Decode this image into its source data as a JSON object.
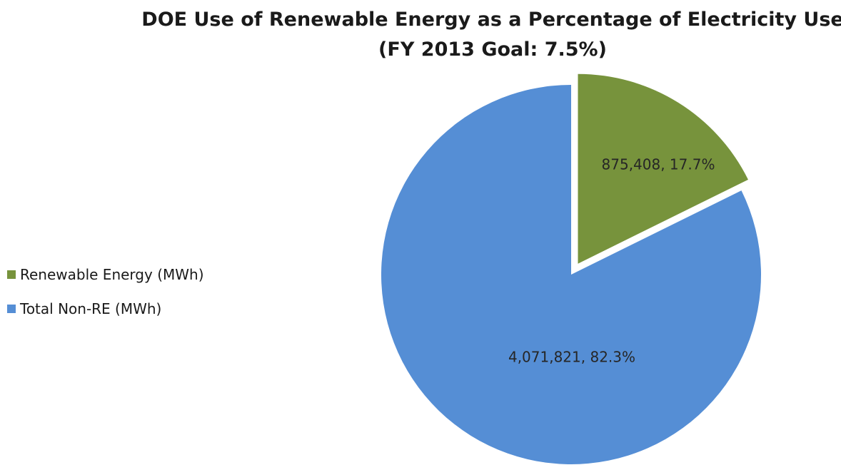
{
  "chart_data": {
    "type": "pie",
    "title": "DOE Use of Renewable Energy as a Percentage of Electricity Use",
    "subtitle": "(FY 2013 Goal:  7.5%)",
    "categories": [
      "Renewable Energy (MWh)",
      "Total Non-RE (MWh)"
    ],
    "values": [
      875408,
      4071821
    ],
    "percentages": [
      17.7,
      82.3
    ],
    "data_labels": [
      "875,408, 17.7%",
      "4,071,821, 82.3%"
    ],
    "colors": [
      "#77933C",
      "#558ED5"
    ],
    "exploded": [
      true,
      false
    ],
    "legend_position": "left"
  }
}
